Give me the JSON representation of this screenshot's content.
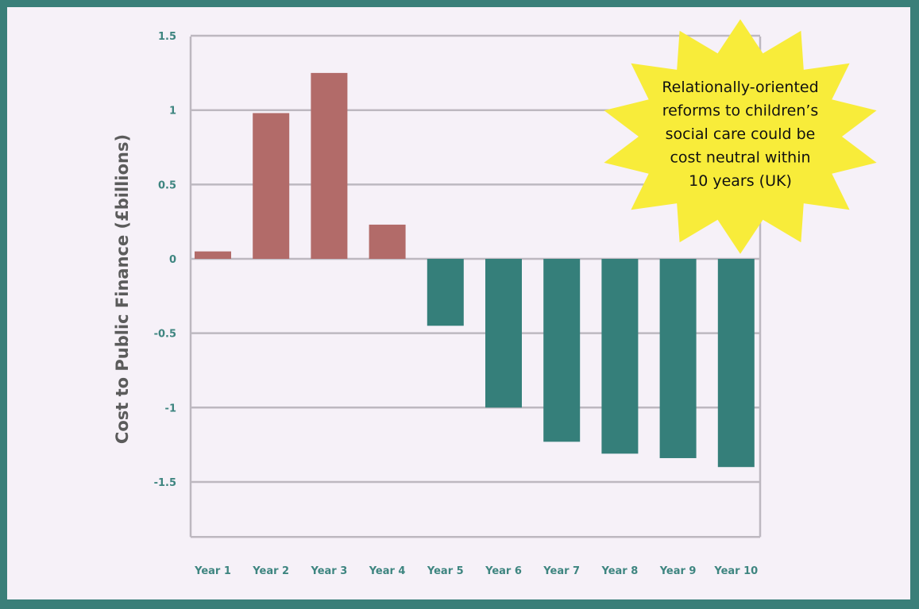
{
  "chart_data": {
    "type": "bar",
    "categories": [
      "Year 1",
      "Year 2",
      "Year 3",
      "Year 4",
      "Year 5",
      "Year 6",
      "Year 7",
      "Year 8",
      "Year 9",
      "Year 10"
    ],
    "values": [
      0.05,
      0.98,
      1.25,
      0.23,
      -0.45,
      -1.0,
      -1.23,
      -1.31,
      -1.34,
      -1.4
    ],
    "ylabel": "Cost to Public Finance (£billions)",
    "yticks": [
      "1.5",
      "1",
      "0.5",
      "0",
      "-0.5",
      "-1",
      "-1.5"
    ],
    "ytick_values": [
      1.5,
      1,
      0.5,
      0,
      -0.5,
      -1,
      -1.5
    ],
    "ylim": [
      -1.87,
      1.5
    ],
    "grid": true,
    "positive_color": "#b26b69",
    "negative_color": "#357f7a",
    "axis_color": "#bdb8c0",
    "callout": {
      "lines": [
        "Relationally-oriented",
        "reforms to children’s",
        "social care could be",
        "cost neutral within",
        "10 years (UK)"
      ],
      "color": "#f8ec3a"
    }
  }
}
